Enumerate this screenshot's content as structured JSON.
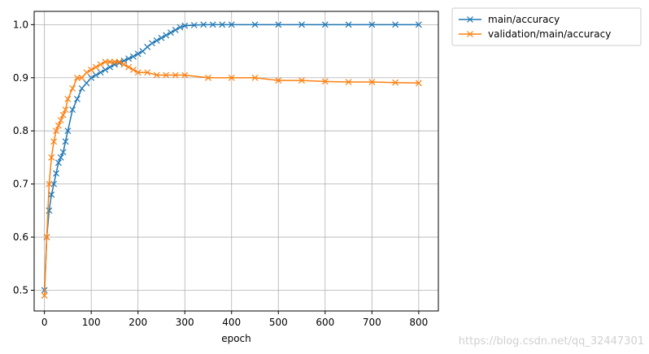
{
  "chart_data": {
    "type": "line",
    "title": "",
    "xlabel": "epoch",
    "ylabel": "",
    "xlim": [
      -22,
      842
    ],
    "ylim": [
      0.461,
      1.025
    ],
    "xticks": [
      0,
      100,
      200,
      300,
      400,
      500,
      600,
      700,
      800
    ],
    "yticks": [
      0.5,
      0.6,
      0.7,
      0.8,
      0.9,
      1.0
    ],
    "ytick_labels": [
      "0.5",
      "0.6",
      "0.7",
      "0.8",
      "0.9",
      "1.0"
    ],
    "grid": true,
    "legend_position": "outside-top-right",
    "marker": "x",
    "series": [
      {
        "name": "main/accuracy",
        "color": "#1f77b4",
        "x": [
          0,
          5,
          10,
          15,
          20,
          25,
          30,
          35,
          40,
          45,
          50,
          60,
          70,
          80,
          90,
          100,
          110,
          120,
          130,
          140,
          150,
          160,
          170,
          180,
          190,
          200,
          210,
          220,
          230,
          240,
          250,
          260,
          270,
          280,
          290,
          300,
          320,
          340,
          360,
          380,
          400,
          450,
          500,
          550,
          600,
          650,
          700,
          750,
          800
        ],
        "y": [
          0.5,
          0.6,
          0.65,
          0.68,
          0.7,
          0.72,
          0.74,
          0.75,
          0.76,
          0.78,
          0.8,
          0.84,
          0.86,
          0.88,
          0.89,
          0.9,
          0.905,
          0.91,
          0.915,
          0.92,
          0.925,
          0.928,
          0.932,
          0.936,
          0.94,
          0.945,
          0.95,
          0.958,
          0.965,
          0.97,
          0.975,
          0.98,
          0.985,
          0.99,
          0.995,
          0.998,
          0.999,
          1.0,
          1.0,
          1.0,
          1.0,
          1.0,
          1.0,
          1.0,
          1.0,
          1.0,
          1.0,
          1.0,
          1.0
        ]
      },
      {
        "name": "validation/main/accuracy",
        "color": "#ff7f0e",
        "x": [
          0,
          5,
          10,
          15,
          20,
          25,
          30,
          35,
          40,
          45,
          50,
          60,
          70,
          80,
          90,
          100,
          110,
          120,
          130,
          140,
          150,
          160,
          170,
          180,
          190,
          200,
          220,
          240,
          260,
          280,
          300,
          350,
          400,
          450,
          500,
          550,
          600,
          650,
          700,
          750,
          800
        ],
        "y": [
          0.49,
          0.6,
          0.7,
          0.75,
          0.78,
          0.8,
          0.81,
          0.82,
          0.83,
          0.84,
          0.86,
          0.88,
          0.9,
          0.9,
          0.91,
          0.915,
          0.92,
          0.925,
          0.93,
          0.93,
          0.93,
          0.93,
          0.925,
          0.92,
          0.915,
          0.91,
          0.91,
          0.905,
          0.905,
          0.905,
          0.905,
          0.9,
          0.9,
          0.9,
          0.895,
          0.895,
          0.893,
          0.892,
          0.892,
          0.891,
          0.89
        ]
      }
    ],
    "annotations": [
      "https://blog.csdn.net/qq_32447301"
    ]
  },
  "colors": {
    "axis": "#000000",
    "grid": "#b0b0b0"
  }
}
